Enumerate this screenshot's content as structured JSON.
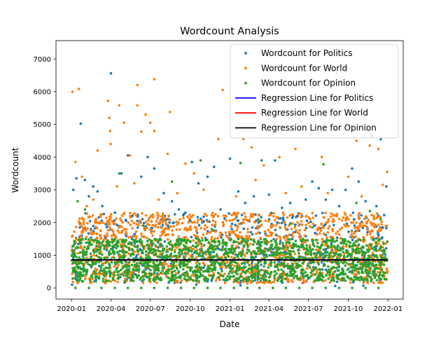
{
  "chart_data": {
    "type": "scatter",
    "title": "Wordcount Analysis",
    "xlabel": "Date",
    "ylabel": "Wordcount",
    "x_range": [
      "2019-11-26",
      "2022-02-05"
    ],
    "ylim": [
      -340,
      7560
    ],
    "x_ticks": [
      "2020-01",
      "2020-04",
      "2020-07",
      "2020-10",
      "2021-01",
      "2021-04",
      "2021-07",
      "2021-10",
      "2022-01"
    ],
    "y_ticks": [
      0,
      1000,
      2000,
      3000,
      4000,
      5000,
      6000,
      7000
    ],
    "grid": false,
    "legend_position": "top-right",
    "series": [
      {
        "name": "Wordcount for Politics",
        "kind": "points",
        "color": "#1f77b4",
        "points": [
          [
            "2020-01-05",
            3000
          ],
          [
            "2020-01-12",
            3350
          ],
          [
            "2020-01-22",
            5020
          ],
          [
            "2020-02-01",
            3300
          ],
          [
            "2020-02-10",
            2800
          ],
          [
            "2020-02-20",
            3100
          ],
          [
            "2020-03-01",
            2950
          ],
          [
            "2020-03-12",
            2500
          ],
          [
            "2020-04-01",
            6560
          ],
          [
            "2020-04-10",
            2300
          ],
          [
            "2020-04-25",
            3500
          ],
          [
            "2020-05-10",
            4050
          ],
          [
            "2020-05-20",
            2200
          ],
          [
            "2020-06-10",
            3400
          ],
          [
            "2020-06-25",
            4000
          ],
          [
            "2020-07-10",
            3650
          ],
          [
            "2020-08-01",
            2900
          ],
          [
            "2020-08-20",
            2650
          ],
          [
            "2020-09-05",
            2400
          ],
          [
            "2020-09-20",
            2300
          ],
          [
            "2020-10-05",
            3850
          ],
          [
            "2020-10-20",
            3200
          ],
          [
            "2020-11-10",
            3400
          ],
          [
            "2020-11-25",
            3700
          ],
          [
            "2020-12-10",
            2400
          ],
          [
            "2021-01-01",
            3950
          ],
          [
            "2021-01-20",
            2950
          ],
          [
            "2021-02-05",
            2600
          ],
          [
            "2021-02-25",
            2800
          ],
          [
            "2021-03-15",
            3900
          ],
          [
            "2021-04-01",
            2850
          ],
          [
            "2021-04-15",
            3900
          ],
          [
            "2021-05-01",
            2450
          ],
          [
            "2021-05-20",
            2600
          ],
          [
            "2021-06-05",
            2200
          ],
          [
            "2021-06-25",
            2700
          ],
          [
            "2021-07-10",
            3250
          ],
          [
            "2021-07-25",
            3050
          ],
          [
            "2021-08-10",
            2700
          ],
          [
            "2021-08-25",
            3000
          ],
          [
            "2021-09-10",
            2500
          ],
          [
            "2021-09-25",
            3000
          ],
          [
            "2021-10-10",
            3650
          ],
          [
            "2021-10-25",
            3250
          ],
          [
            "2021-11-10",
            2650
          ],
          [
            "2021-11-25",
            4650
          ],
          [
            "2021-12-05",
            2500
          ],
          [
            "2021-12-15",
            4550
          ],
          [
            "2021-12-28",
            3100
          ],
          [
            "2020-01-02",
            100
          ],
          [
            "2020-01-20",
            1850
          ],
          [
            "2020-02-15",
            1800
          ],
          [
            "2020-03-20",
            1950
          ],
          [
            "2020-06-01",
            2050
          ],
          [
            "2020-08-10",
            2100
          ],
          [
            "2020-10-01",
            2050
          ],
          [
            "2021-01-05",
            1800
          ],
          [
            "2021-04-20",
            2000
          ],
          [
            "2021-07-15",
            1900
          ],
          [
            "2021-10-15",
            2100
          ],
          [
            "2021-12-20",
            1850
          ],
          [
            "2020-10-15",
            100
          ],
          [
            "2021-01-25",
            80
          ],
          [
            "2021-09-01",
            60
          ],
          [
            "2021-11-05",
            70
          ]
        ]
      },
      {
        "name": "Wordcount for World",
        "kind": "points",
        "color": "#ff7f0e",
        "points": [
          [
            "2020-01-03",
            6000
          ],
          [
            "2020-01-18",
            6080
          ],
          [
            "2020-01-10",
            3850
          ],
          [
            "2020-01-25",
            3400
          ],
          [
            "2020-02-20",
            2700
          ],
          [
            "2020-03-01",
            4200
          ],
          [
            "2020-03-25",
            5720
          ],
          [
            "2020-03-28",
            5200
          ],
          [
            "2020-03-30",
            4800
          ],
          [
            "2020-03-31",
            4400
          ],
          [
            "2020-04-20",
            5580
          ],
          [
            "2020-05-01",
            5050
          ],
          [
            "2020-05-15",
            4050
          ],
          [
            "2020-06-01",
            6200
          ],
          [
            "2020-06-01",
            5580
          ],
          [
            "2020-06-20",
            5300
          ],
          [
            "2020-06-10",
            4780
          ],
          [
            "2020-07-01",
            5050
          ],
          [
            "2020-07-10",
            4800
          ],
          [
            "2020-07-10",
            6380
          ],
          [
            "2020-08-15",
            5380
          ],
          [
            "2020-08-10",
            4100
          ],
          [
            "2020-09-20",
            3800
          ],
          [
            "2020-10-10",
            3500
          ],
          [
            "2020-12-15",
            6050
          ],
          [
            "2020-12-05",
            4550
          ],
          [
            "2021-02-01",
            4550
          ],
          [
            "2021-02-20",
            4300
          ],
          [
            "2021-03-20",
            3750
          ],
          [
            "2021-04-25",
            4000
          ],
          [
            "2021-06-01",
            4250
          ],
          [
            "2021-07-05",
            4700
          ],
          [
            "2021-08-01",
            4000
          ],
          [
            "2021-09-05",
            6560
          ],
          [
            "2021-09-20",
            4700
          ],
          [
            "2021-10-20",
            4500
          ],
          [
            "2021-11-20",
            4350
          ],
          [
            "2021-12-10",
            4250
          ],
          [
            "2021-12-30",
            3550
          ],
          [
            "2020-02-05",
            2500
          ],
          [
            "2020-04-15",
            3100
          ],
          [
            "2020-05-25",
            3200
          ],
          [
            "2020-07-20",
            2700
          ],
          [
            "2020-09-01",
            2900
          ],
          [
            "2020-11-01",
            3000
          ],
          [
            "2021-01-15",
            2800
          ],
          [
            "2021-03-01",
            3300
          ],
          [
            "2021-05-10",
            2900
          ],
          [
            "2021-06-15",
            3100
          ],
          [
            "2021-08-15",
            2900
          ],
          [
            "2021-10-01",
            3400
          ],
          [
            "2021-11-01",
            2800
          ],
          [
            "2021-12-20",
            3150
          ],
          [
            "2020-01-15",
            150
          ],
          [
            "2020-04-01",
            200
          ],
          [
            "2020-07-01",
            180
          ],
          [
            "2020-10-20",
            160
          ],
          [
            "2021-02-10",
            140
          ],
          [
            "2021-05-15",
            190
          ],
          [
            "2021-08-20",
            170
          ],
          [
            "2021-11-15",
            150
          ]
        ]
      },
      {
        "name": "Wordcount for Opinion",
        "kind": "points",
        "color": "#2ca02c",
        "points": [
          [
            "2020-01-15",
            2650
          ],
          [
            "2020-02-01",
            2400
          ],
          [
            "2020-08-20",
            3250
          ],
          [
            "2020-10-25",
            3900
          ],
          [
            "2021-01-25",
            3820
          ],
          [
            "2021-03-10",
            2050
          ],
          [
            "2021-08-05",
            3780
          ],
          [
            "2021-10-20",
            2600
          ],
          [
            "2021-11-20",
            2350
          ],
          [
            "2021-12-15",
            2100
          ],
          [
            "2020-04-20",
            3500
          ],
          [
            "2020-06-15",
            1900
          ],
          [
            "2021-05-20",
            1950
          ],
          [
            "2021-07-10",
            1850
          ],
          [
            "2020-11-20",
            1800
          ],
          [
            "2020-01-10",
            0
          ],
          [
            "2020-02-10",
            0
          ],
          [
            "2020-03-10",
            0
          ],
          [
            "2020-04-10",
            0
          ],
          [
            "2020-05-10",
            0
          ],
          [
            "2020-06-10",
            0
          ],
          [
            "2020-07-10",
            0
          ],
          [
            "2020-08-10",
            0
          ],
          [
            "2020-09-10",
            0
          ],
          [
            "2020-10-10",
            0
          ],
          [
            "2020-11-10",
            0
          ],
          [
            "2020-12-10",
            0
          ],
          [
            "2021-01-10",
            0
          ],
          [
            "2021-02-10",
            0
          ],
          [
            "2021-03-10",
            0
          ],
          [
            "2021-04-10",
            0
          ],
          [
            "2021-05-10",
            0
          ],
          [
            "2021-06-10",
            0
          ],
          [
            "2021-07-10",
            0
          ],
          [
            "2021-08-10",
            0
          ],
          [
            "2021-09-10",
            0
          ],
          [
            "2021-10-10",
            0
          ],
          [
            "2021-11-10",
            0
          ],
          [
            "2021-12-10",
            0
          ]
        ]
      },
      {
        "name": "Regression Line for Politics",
        "kind": "line",
        "color": "#0000ff",
        "x": [
          "2020-01-01",
          "2021-12-31"
        ],
        "y": [
          860,
          860
        ]
      },
      {
        "name": "Regression Line for World",
        "kind": "line",
        "color": "#ff0000",
        "x": [
          "2020-01-01",
          "2021-12-31"
        ],
        "y": [
          850,
          850
        ]
      },
      {
        "name": "Regression Line for Opinion",
        "kind": "line",
        "color": "#000000",
        "x": [
          "2020-01-01",
          "2021-12-31"
        ],
        "y": [
          855,
          855
        ]
      }
    ],
    "dense_band": {
      "x_start": "2020-01-01",
      "x_end": "2021-12-31",
      "opinion_range": [
        200,
        1500
      ],
      "world_range": [
        150,
        2300
      ],
      "politics_range": [
        150,
        2300
      ]
    }
  }
}
